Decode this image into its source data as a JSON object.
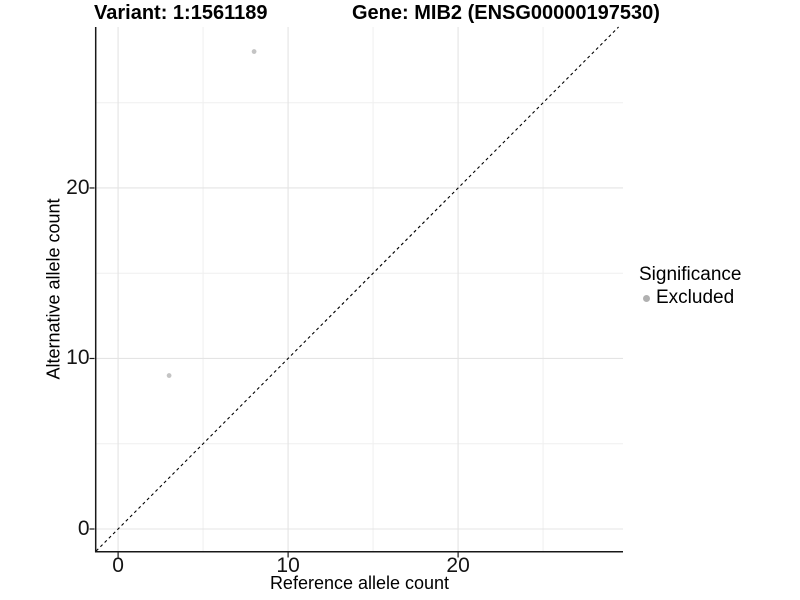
{
  "title": {
    "variant": "Variant: 1:1561189",
    "gene": "Gene: MIB2 (ENSG00000197530)"
  },
  "legend": {
    "title": "Significance",
    "items": [
      {
        "label": "Excluded",
        "color": "#b1b1b1"
      }
    ]
  },
  "chart_data": {
    "type": "scatter",
    "title": "Variant: 1:1561189   Gene: MIB2 (ENSG00000197530)",
    "xlabel": "Reference allele count",
    "ylabel": "Alternative allele count",
    "xlim": [
      -1.3,
      29.7
    ],
    "ylim": [
      -1.29,
      29.44
    ],
    "xticks": [
      0,
      10,
      20
    ],
    "yticks": [
      0,
      10,
      20
    ],
    "xticks_minor": [
      5,
      15,
      25
    ],
    "yticks_minor": [
      5,
      15,
      25
    ],
    "grid": "major+minor",
    "legend_position": "right",
    "identity_line": {
      "show": true,
      "linetype": "dashed",
      "color": "#000000"
    },
    "series": [
      {
        "name": "Excluded",
        "color": "#c4c4c4",
        "point_radius": 2.4,
        "points": [
          [
            3,
            9
          ],
          [
            8,
            28
          ]
        ]
      }
    ],
    "colors": {
      "background": "#ffffff",
      "grid_major": "#e4e4e4",
      "grid_minor": "#efefef",
      "axis_line": "#181818",
      "tick_mark": "#181818"
    }
  }
}
